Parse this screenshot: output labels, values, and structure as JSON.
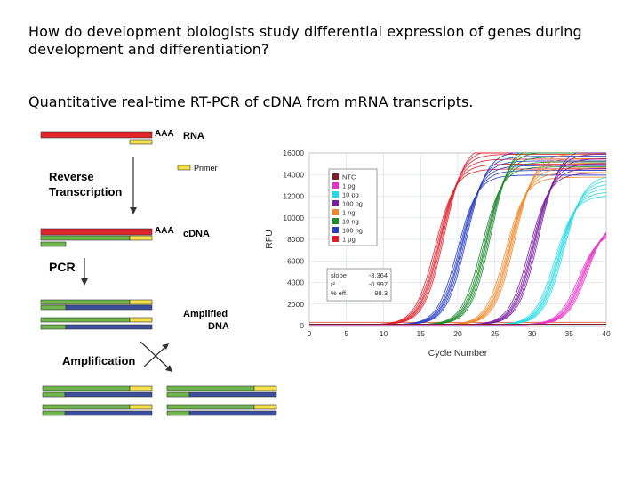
{
  "slide": {
    "question": "How do development biologists study differential expression of genes during development and differentiation?",
    "answer": "Quantitative real-time RT-PCR of cDNA from mRNA transcripts."
  },
  "diagram": {
    "aaa_top": "AAA",
    "rna_label": "RNA",
    "primer_label": "Primer",
    "rt_label_1": "Reverse",
    "rt_label_2": "Transcription",
    "aaa_mid": "AAA",
    "cdna_label": "cDNA",
    "pcr_label": "PCR",
    "amplified_1": "Amplified",
    "amplified_2": "DNA",
    "amplification_label": "Amplification",
    "colors": {
      "rna": "#e0262b",
      "primer": "#f4e04d",
      "cdna": "#6fb54b",
      "dna": "#3c4f9c"
    }
  },
  "chart_data": {
    "type": "line",
    "xlabel": "Cycle Number",
    "ylabel": "RFU",
    "xlim": [
      0,
      40
    ],
    "ylim": [
      0,
      16000
    ],
    "xticks": [
      0,
      5,
      10,
      15,
      20,
      25,
      30,
      35,
      40
    ],
    "yticks": [
      0,
      2000,
      4000,
      6000,
      8000,
      10000,
      12000,
      14000,
      16000
    ],
    "threshold": 300,
    "legend": [
      {
        "name": "NTC",
        "color": "#7a1f2b"
      },
      {
        "name": "1 pg",
        "color": "#e531c7"
      },
      {
        "name": "10 pg",
        "color": "#23d9e3"
      },
      {
        "name": "100 pg",
        "color": "#7a1fa0"
      },
      {
        "name": "1 ng",
        "color": "#f0882a"
      },
      {
        "name": "10 ng",
        "color": "#1f8a2e"
      },
      {
        "name": "100 ng",
        "color": "#2a3fc4"
      },
      {
        "name": "1 µg",
        "color": "#e01f2b"
      }
    ],
    "legend_position": "top-left",
    "series_midpoints": [
      {
        "name": "1 µg",
        "ct": 17.5,
        "plateau": 15200
      },
      {
        "name": "100 ng",
        "ct": 20.5,
        "plateau": 14600
      },
      {
        "name": "10 ng",
        "ct": 23.8,
        "plateau": 15400
      },
      {
        "name": "1 ng",
        "ct": 27.0,
        "plateau": 14400
      },
      {
        "name": "100 pg",
        "ct": 30.2,
        "plateau": 14800
      },
      {
        "name": "10 pg",
        "ct": 33.6,
        "plateau": 12600
      },
      {
        "name": "1 pg",
        "ct": 36.8,
        "plateau": 9000
      }
    ],
    "stats": {
      "slope_label": "slope",
      "slope_value": "-3.364",
      "r2_label": "r²",
      "r2_value": "-0.997",
      "eff_label": "% eff.",
      "eff_value": "98.3"
    }
  }
}
